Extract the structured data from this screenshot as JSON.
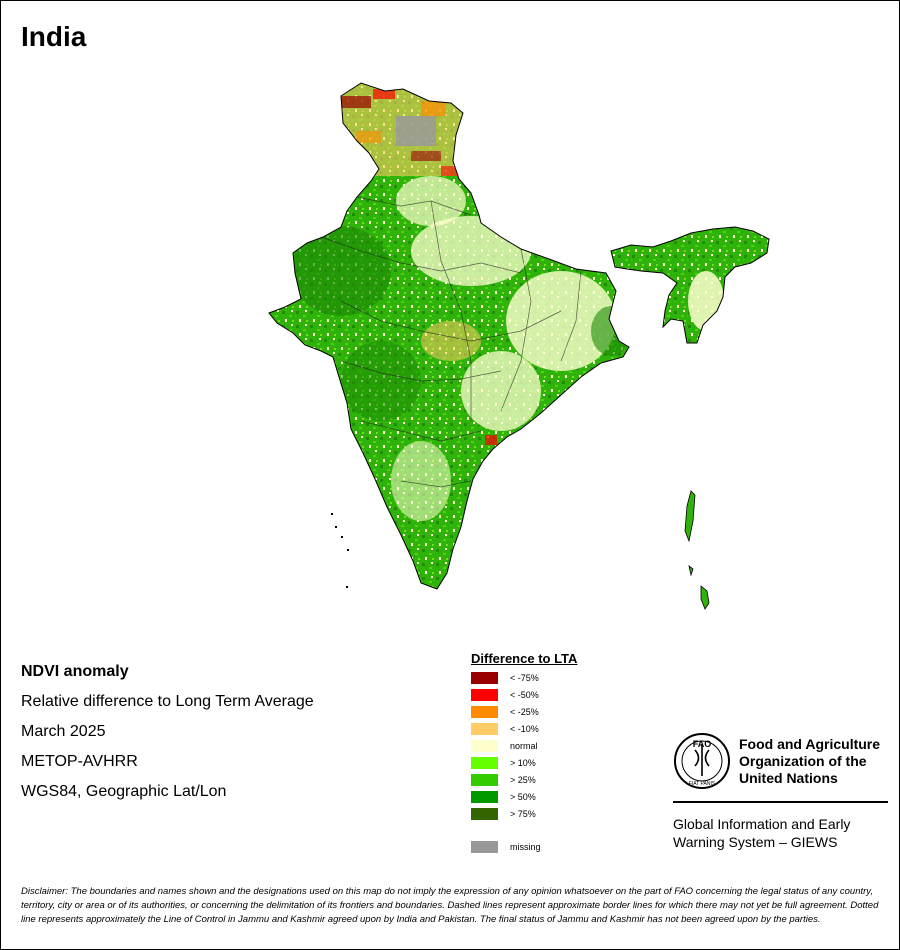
{
  "map": {
    "title": "India"
  },
  "info": {
    "title": "NDVI anomaly",
    "subtitle": "Relative difference to Long Term Average",
    "period": "March 2025",
    "sensor": "METOP-AVHRR",
    "projection": "WGS84, Geographic Lat/Lon"
  },
  "legend": {
    "title": "Difference to LTA",
    "items": [
      {
        "label": "< -75%",
        "color": "#990000"
      },
      {
        "label": "< -50%",
        "color": "#ff0000"
      },
      {
        "label": "< -25%",
        "color": "#ff8c00"
      },
      {
        "label": "< -10%",
        "color": "#ffcc66"
      },
      {
        "label": "normal",
        "color": "#ffffcc"
      },
      {
        "label": "> 10%",
        "color": "#66ff00"
      },
      {
        "label": "> 25%",
        "color": "#33cc00"
      },
      {
        "label": "> 50%",
        "color": "#009900"
      },
      {
        "label": "> 75%",
        "color": "#336600"
      }
    ],
    "missing": {
      "label": "missing",
      "color": "#999999"
    }
  },
  "fao": {
    "logo_icon": "fao-logo-icon",
    "logo_text": "FAO",
    "logo_motto": "FIAT PANIS",
    "name_line1": "Food and Agriculture",
    "name_line2": "Organization of the",
    "name_line3": "United Nations",
    "giews_line1": "Global Information and Early",
    "giews_line2": "Warning System – GIEWS"
  },
  "disclaimer": "Disclaimer: The boundaries and names shown and the designations used on this map do not imply the expression of any opinion whatsoever on the part of FAO concerning the legal status of any country, territory, city or area or of its authorities, or concerning the delimitation of its frontiers and boundaries. Dashed lines represent approximate border lines for which there may not yet be full agreement. Dotted line represents approximately the Line of Control in Jammu and Kashmir agreed upon by India and Pakistan. The final status of Jammu and Kashmir has not been agreed upon by the parties."
}
